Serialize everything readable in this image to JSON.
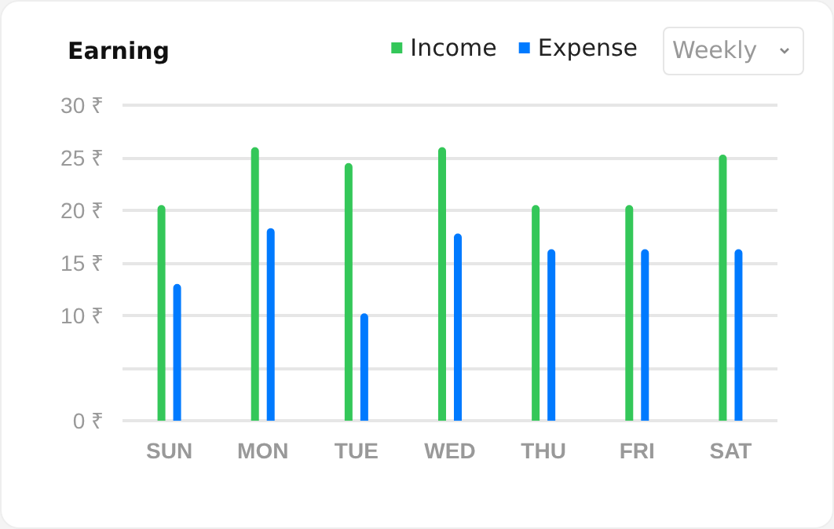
{
  "chart_data": {
    "type": "bar",
    "title": "Earning",
    "categories": [
      "SUN",
      "MON",
      "TUE",
      "WED",
      "THU",
      "FRI",
      "SAT"
    ],
    "series": [
      {
        "name": "Income",
        "color": "#34c759",
        "values": [
          20.5,
          26,
          24.5,
          26,
          20.5,
          20.5,
          25.3
        ]
      },
      {
        "name": "Expense",
        "color": "#007aff",
        "values": [
          13,
          18.3,
          10.2,
          17.8,
          16.3,
          16.3,
          16.3
        ]
      }
    ],
    "ylim": [
      0,
      30
    ],
    "yticks": [
      {
        "value": 0,
        "label": "0 ₹"
      },
      {
        "value": 5,
        "label": null
      },
      {
        "value": 10,
        "label": "10 ₹"
      },
      {
        "value": 15,
        "label": "15 ₹"
      },
      {
        "value": 20,
        "label": "20 ₹"
      },
      {
        "value": 25,
        "label": "25 ₹"
      },
      {
        "value": 30,
        "label": "30 ₹"
      }
    ],
    "grid": "y",
    "legend": "top right",
    "annotations": [
      "Weekly"
    ]
  }
}
